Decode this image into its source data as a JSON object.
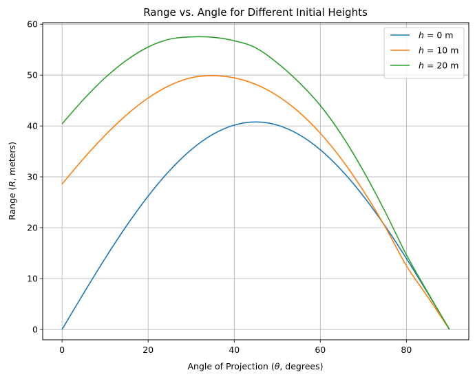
{
  "chart_data": {
    "type": "line",
    "title": "Range vs. Angle for Different Initial Heights",
    "xlabel": {
      "prefix": "Angle of Projection (",
      "var": "θ",
      "suffix": ", degrees)"
    },
    "ylabel": {
      "prefix": "Range (",
      "var": "R",
      "suffix": ", meters)"
    },
    "xlim": [
      -4.5,
      94.5
    ],
    "ylim": [
      -2.04,
      60.3
    ],
    "xticks": [
      0,
      20,
      40,
      60,
      80
    ],
    "yticks": [
      0,
      10,
      20,
      30,
      40,
      50,
      60
    ],
    "grid": true,
    "legend_position": "top-right",
    "series": [
      {
        "name": "h = 0 m",
        "legend": {
          "var": "h",
          "eq": " = 0 m"
        },
        "color": "#1f77b4",
        "x": [
          0,
          5,
          10,
          15,
          20,
          25,
          30,
          35,
          40,
          45,
          50,
          55,
          60,
          65,
          70,
          75,
          80,
          85,
          90
        ],
        "y": [
          0,
          7.08,
          13.95,
          20.39,
          26.21,
          31.24,
          35.32,
          38.33,
          40.17,
          40.79,
          40.17,
          38.33,
          35.32,
          31.24,
          26.21,
          20.39,
          13.95,
          7.08,
          0
        ]
      },
      {
        "name": "h = 10 m",
        "legend": {
          "var": "h",
          "eq": " = 10 m"
        },
        "color": "#ff7f0e",
        "x": [
          0,
          5,
          10,
          15,
          20,
          25,
          30,
          35,
          40,
          45,
          50,
          55,
          60,
          65,
          70,
          75,
          80,
          85,
          90
        ],
        "y": [
          28.57,
          33.59,
          38.17,
          42.18,
          45.49,
          47.97,
          49.48,
          49.88,
          49.46,
          48.18,
          45.96,
          42.77,
          38.58,
          33.39,
          27.26,
          20.27,
          12.53,
          6.35,
          0
        ]
      },
      {
        "name": "h = 20 m",
        "legend": {
          "var": "h",
          "eq": " = 20 m"
        },
        "color": "#2ca02c",
        "x": [
          0,
          5,
          10,
          15,
          20,
          25,
          30,
          35,
          40,
          45,
          50,
          55,
          60,
          65,
          70,
          75,
          80,
          85,
          90
        ],
        "y": [
          40.41,
          45.22,
          49.47,
          52.93,
          55.52,
          57.07,
          57.51,
          57.44,
          56.75,
          55.36,
          52.39,
          48.61,
          44.03,
          38.18,
          31.17,
          23.24,
          14.68,
          7.23,
          0
        ]
      }
    ]
  }
}
